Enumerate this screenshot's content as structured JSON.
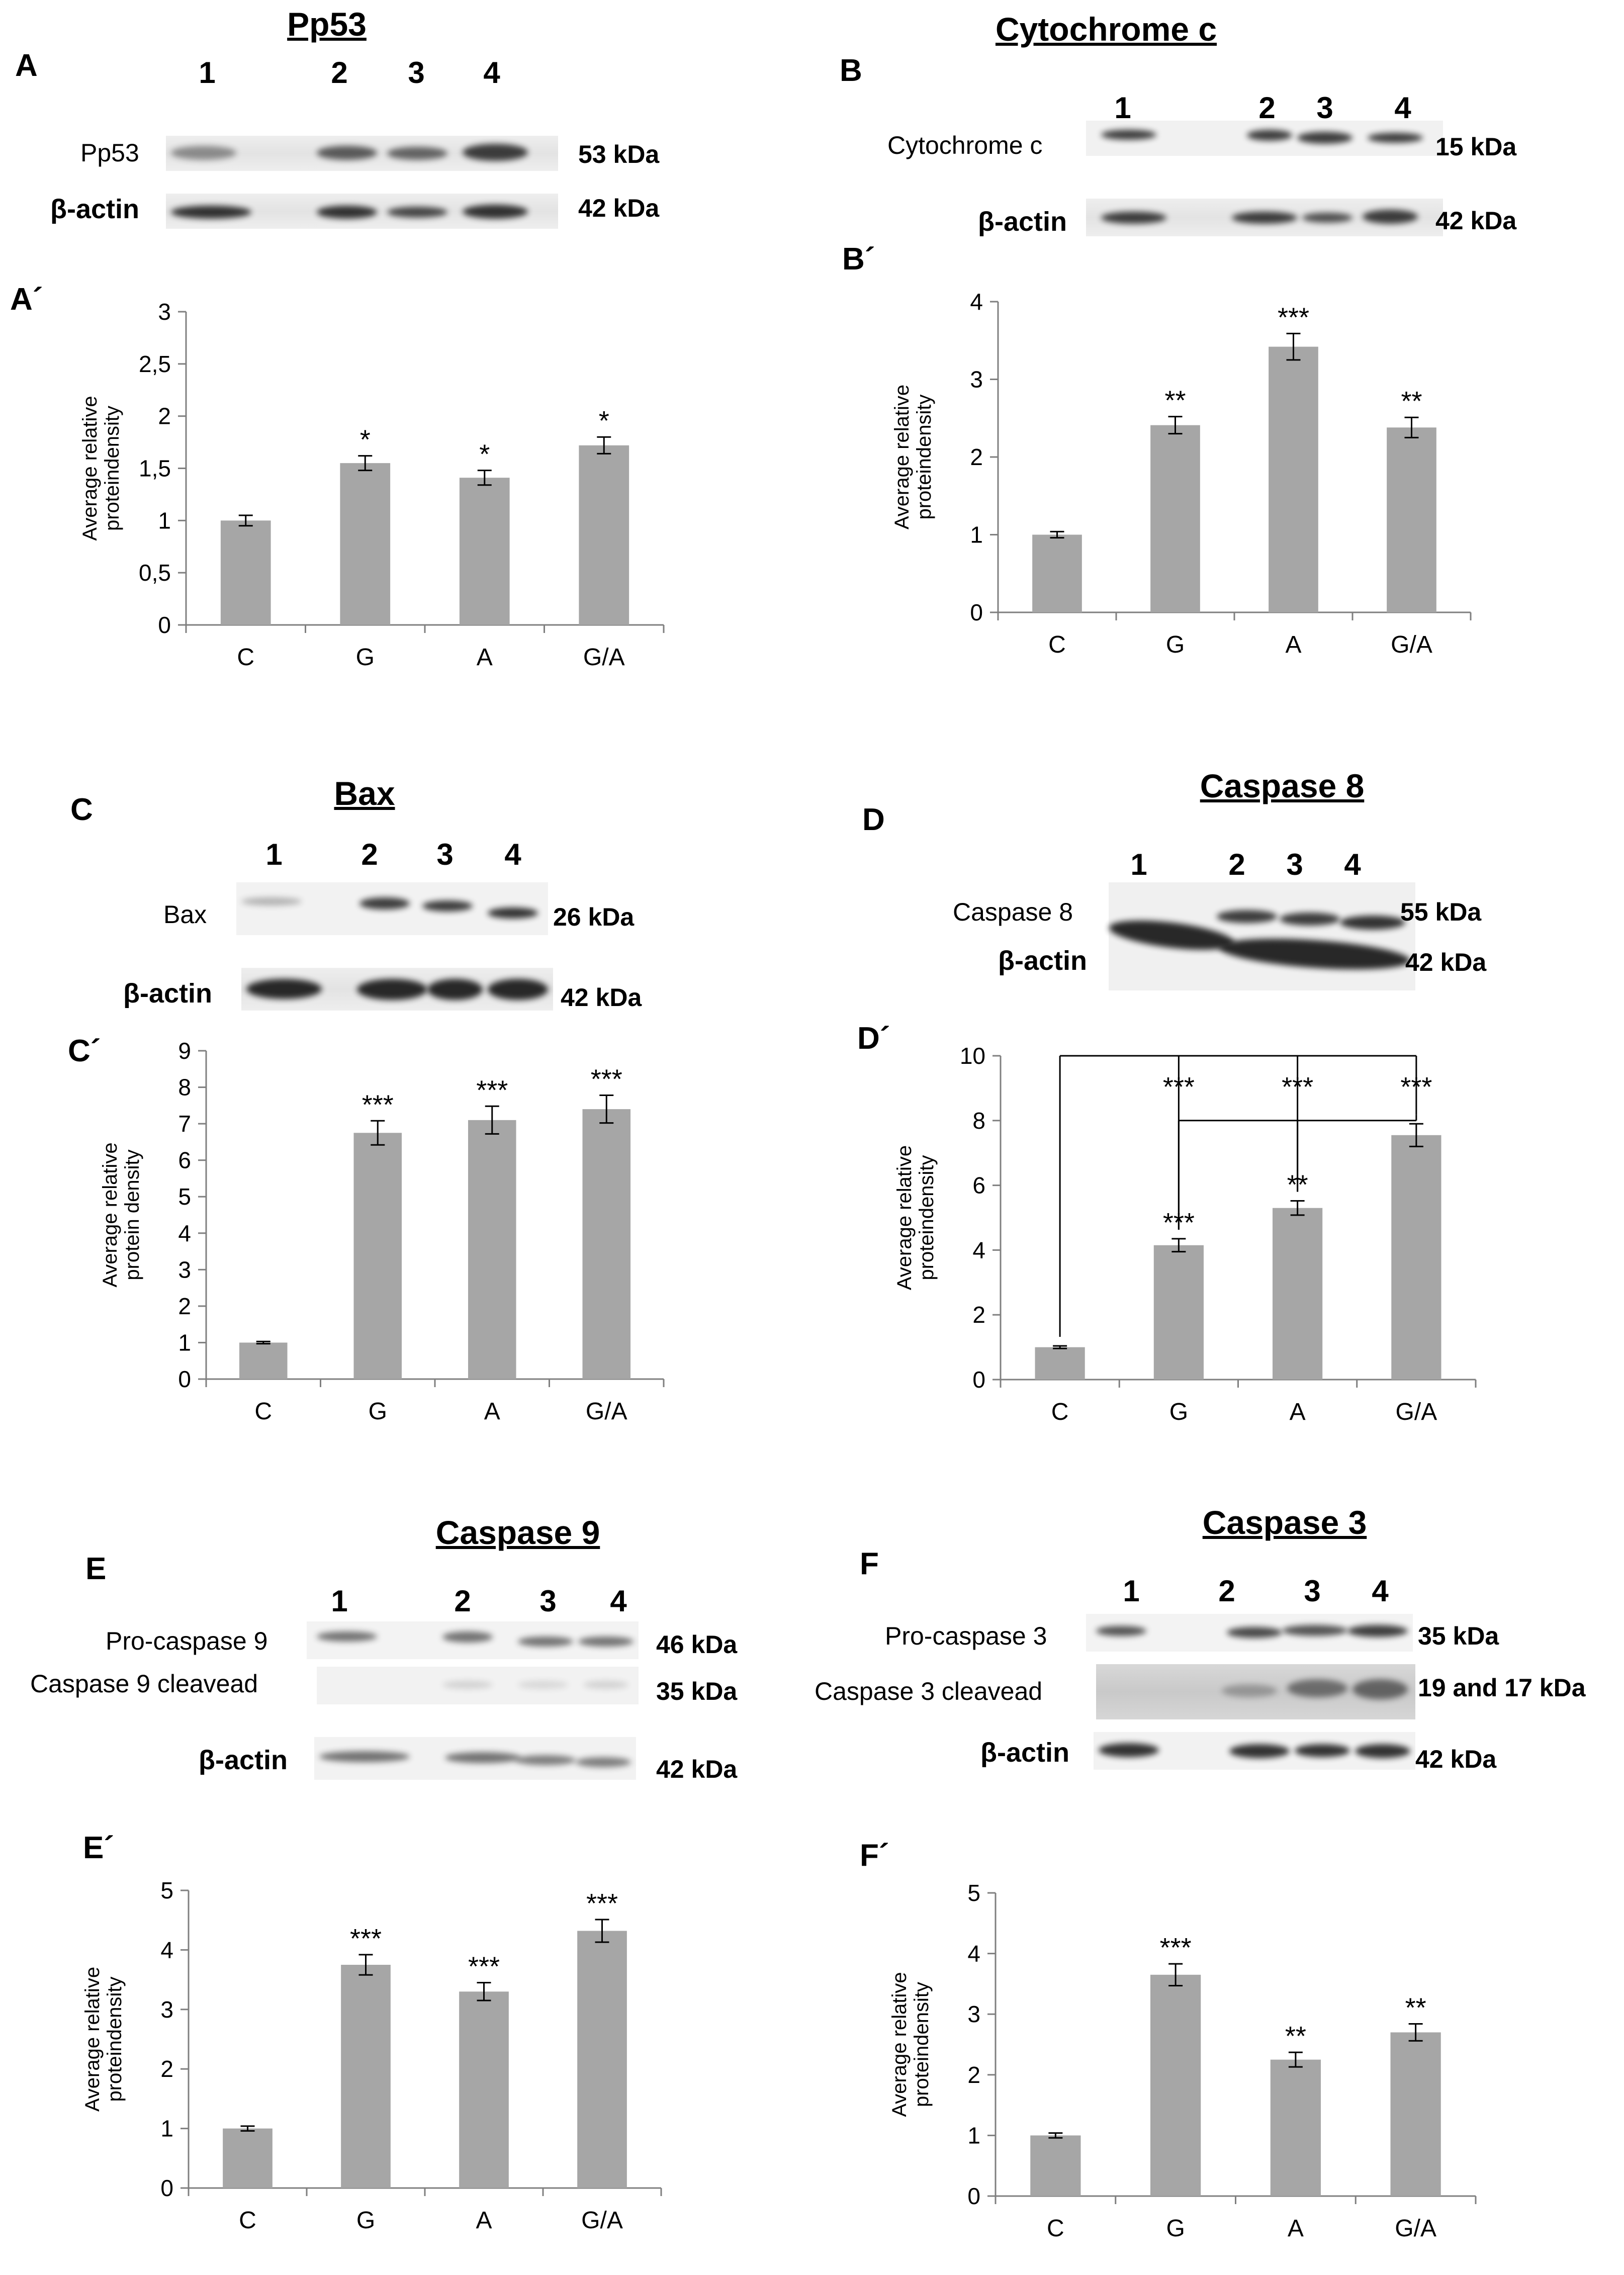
{
  "panels": [
    {
      "id": "A",
      "title": "Pp53",
      "blot_letter": "A",
      "chart_letter": "A´",
      "lanes": [
        "1",
        "2",
        "3",
        "4"
      ],
      "rows": [
        {
          "label": "Pp53",
          "mw": "53 kDa"
        },
        {
          "label": "β-actin",
          "mw": "42 kDa"
        }
      ]
    },
    {
      "id": "B",
      "title": "Cytochrome c",
      "blot_letter": "B",
      "chart_letter": "B´",
      "lanes": [
        "1",
        "2",
        "3",
        "4"
      ],
      "rows": [
        {
          "label": "Cytochrome c",
          "mw": "15 kDa"
        },
        {
          "label": "β-actin",
          "mw": "42 kDa"
        }
      ]
    },
    {
      "id": "C",
      "title": "Bax",
      "blot_letter": "C",
      "chart_letter": "C´",
      "lanes": [
        "1",
        "2",
        "3",
        "4"
      ],
      "rows": [
        {
          "label": "Bax",
          "mw": "26 kDa"
        },
        {
          "label": "β-actin",
          "mw": "42 kDa"
        }
      ]
    },
    {
      "id": "D",
      "title": "Caspase 8",
      "blot_letter": "D",
      "chart_letter": "D´",
      "lanes": [
        "1",
        "2",
        "3",
        "4"
      ],
      "rows": [
        {
          "label": "Caspase 8",
          "mw": "55 kDa"
        },
        {
          "label": "β-actin",
          "mw": "42 kDa"
        }
      ]
    },
    {
      "id": "E",
      "title": "Caspase 9",
      "blot_letter": "E",
      "chart_letter": "E´",
      "lanes": [
        "1",
        "2",
        "3",
        "4"
      ],
      "rows": [
        {
          "label": "Pro-caspase 9",
          "mw": "46 kDa"
        },
        {
          "label": "Caspase 9 cleavead",
          "mw": "35 kDa"
        },
        {
          "label": "β-actin",
          "mw": "42 kDa"
        }
      ]
    },
    {
      "id": "F",
      "title": "Caspase 3",
      "blot_letter": "F",
      "chart_letter": "F´",
      "lanes": [
        "1",
        "2",
        "3",
        "4"
      ],
      "rows": [
        {
          "label": "Pro-caspase 3",
          "mw": "35 kDa"
        },
        {
          "label": "Caspase 3 cleavead",
          "mw": "19 and 17 kDa"
        },
        {
          "label": "β-actin",
          "mw": "42 kDa"
        }
      ]
    }
  ],
  "chart_data": [
    {
      "panel": "A´",
      "type": "bar",
      "categories": [
        "C",
        "G",
        "A",
        "G/A"
      ],
      "values": [
        1.0,
        1.55,
        1.41,
        1.72
      ],
      "errors": [
        0.05,
        0.07,
        0.07,
        0.08
      ],
      "significance": [
        "",
        "*",
        "*",
        "*"
      ],
      "ylabel": "Average relative proteindensity",
      "ylim": [
        0,
        3
      ],
      "yticks": [
        "0",
        "0,5",
        "1",
        "1,5",
        "2",
        "2,5",
        "3"
      ],
      "ytick_values": [
        0,
        0.5,
        1,
        1.5,
        2,
        2.5,
        3
      ]
    },
    {
      "panel": "B´",
      "type": "bar",
      "categories": [
        "C",
        "G",
        "A",
        "G/A"
      ],
      "values": [
        1.0,
        2.41,
        3.42,
        2.38
      ],
      "errors": [
        0.04,
        0.11,
        0.17,
        0.13
      ],
      "significance": [
        "",
        "**",
        "***",
        "**"
      ],
      "ylabel": "Average relative proteindensity",
      "ylim": [
        0,
        4
      ],
      "yticks": [
        "0",
        "1",
        "2",
        "3",
        "4"
      ],
      "ytick_values": [
        0,
        1,
        2,
        3,
        4
      ]
    },
    {
      "panel": "C´",
      "type": "bar",
      "categories": [
        "C",
        "G",
        "A",
        "G/A"
      ],
      "values": [
        1.0,
        6.75,
        7.1,
        7.4
      ],
      "errors": [
        0.03,
        0.33,
        0.38,
        0.38
      ],
      "significance": [
        "",
        "***",
        "***",
        "***"
      ],
      "ylabel": "Average relative protein density",
      "ylim": [
        0,
        9
      ],
      "yticks": [
        "0",
        "1",
        "2",
        "3",
        "4",
        "5",
        "6",
        "7",
        "8",
        "9"
      ],
      "ytick_values": [
        0,
        1,
        2,
        3,
        4,
        5,
        6,
        7,
        8,
        9
      ]
    },
    {
      "panel": "D´",
      "type": "bar",
      "categories": [
        "C",
        "G",
        "A",
        "G/A"
      ],
      "values": [
        1.0,
        4.15,
        5.3,
        7.55
      ],
      "errors": [
        0.04,
        0.2,
        0.22,
        0.35
      ],
      "significance": [
        "",
        "***",
        "**",
        ""
      ],
      "ylabel": "Average relative proteindensity",
      "ylim": [
        0,
        10
      ],
      "yticks": [
        "0",
        "2",
        "4",
        "6",
        "8",
        "10"
      ],
      "ytick_values": [
        0,
        2,
        4,
        6,
        8,
        10
      ],
      "brackets": [
        {
          "from": 0,
          "to": [
            1,
            2,
            3
          ],
          "level": 10.0,
          "labels": [
            "***",
            "***",
            "***"
          ]
        },
        {
          "from": 1,
          "to": [
            2,
            3
          ],
          "level": 8.0,
          "labels": []
        }
      ]
    },
    {
      "panel": "E´",
      "type": "bar",
      "categories": [
        "C",
        "G",
        "A",
        "G/A"
      ],
      "values": [
        1.0,
        3.75,
        3.3,
        4.32
      ],
      "errors": [
        0.04,
        0.17,
        0.15,
        0.19
      ],
      "significance": [
        "",
        "***",
        "***",
        "***"
      ],
      "ylabel": "Average relative proteindensity",
      "ylim": [
        0,
        5
      ],
      "yticks": [
        "0",
        "1",
        "2",
        "3",
        "4",
        "5"
      ],
      "ytick_values": [
        0,
        1,
        2,
        3,
        4,
        5
      ]
    },
    {
      "panel": "F´",
      "type": "bar",
      "categories": [
        "C",
        "G",
        "A",
        "G/A"
      ],
      "values": [
        1.0,
        3.65,
        2.25,
        2.7
      ],
      "errors": [
        0.04,
        0.18,
        0.12,
        0.14
      ],
      "significance": [
        "",
        "***",
        "**",
        "**"
      ],
      "ylabel": "Average relative proteindensity",
      "ylim": [
        0,
        5
      ],
      "yticks": [
        "0",
        "1",
        "2",
        "3",
        "4",
        "5"
      ],
      "ytick_values": [
        0,
        1,
        2,
        3,
        4,
        5
      ]
    }
  ],
  "colors": {
    "bar": "#a6a6a6",
    "axis": "#7f7f7f",
    "text": "#000000",
    "band": "#1e1e1e"
  }
}
